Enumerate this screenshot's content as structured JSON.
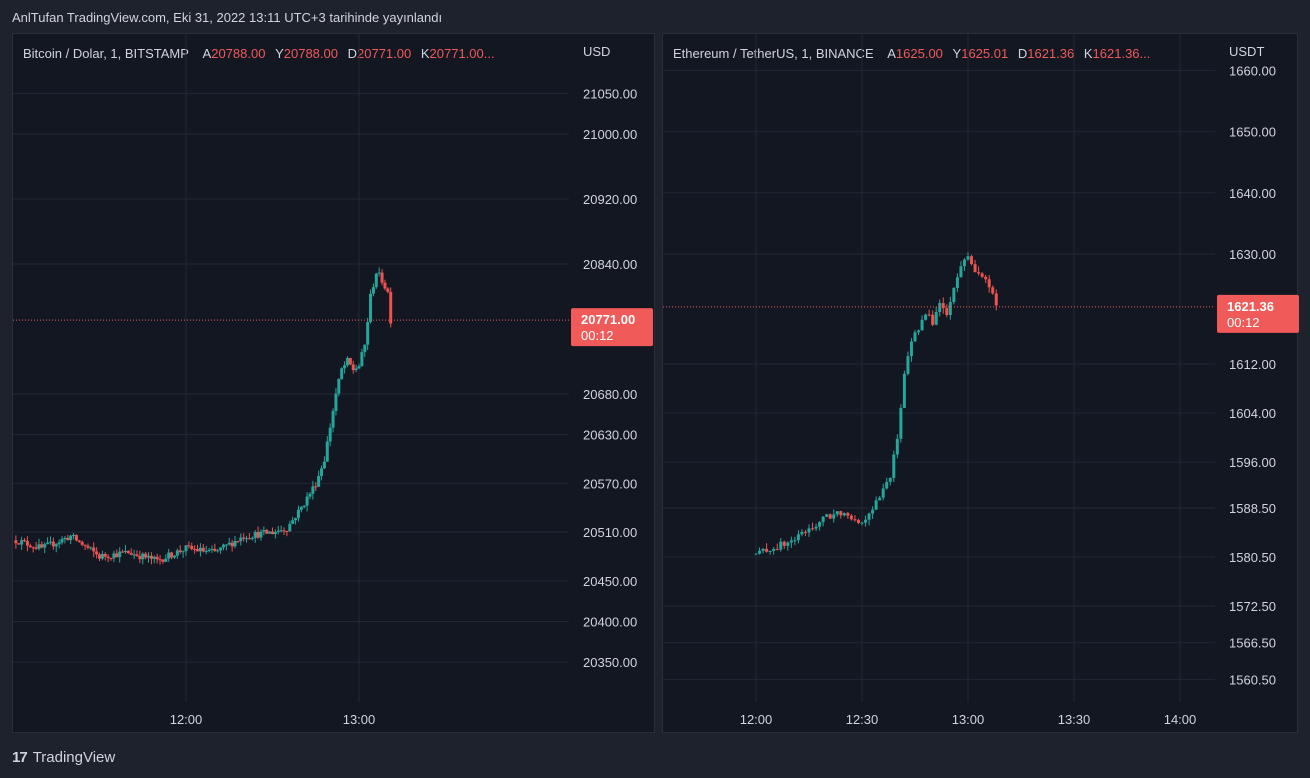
{
  "header": {
    "title": "AnlTufan TradingView.com, Eki 31, 2022 13:11 UTC+3 tarihinde yayınlandı"
  },
  "footer": {
    "brand": "TradingView",
    "logo_icon": "tradingview-logo-icon"
  },
  "colors": {
    "up": "#26a69a",
    "down": "#ef5350",
    "grid": "#232733",
    "bg": "#131722",
    "badge": "#f05a58"
  },
  "chart_data": [
    {
      "type": "candlestick",
      "symbol": "Bitcoin / Dolar, 1, BITSTAMP",
      "ohlc": [
        {
          "label": "A",
          "value": "20788.00"
        },
        {
          "label": "Y",
          "value": "20788.00"
        },
        {
          "label": "D",
          "value": "20771.00"
        },
        {
          "label": "K",
          "value": "20771.00..."
        }
      ],
      "currency": "USD",
      "yticks": [
        21050,
        21000,
        20920,
        20840,
        20680,
        20630,
        20570,
        20510,
        20450,
        20400,
        20350
      ],
      "ytick_labels": [
        "21050.00",
        "21000.00",
        "20920.00",
        "20840.00",
        "20680.00",
        "20630.00",
        "20570.00",
        "20510.00",
        "20450.00",
        "20400.00",
        "20350.00"
      ],
      "xticks": [
        {
          "label": "12:00",
          "minute": 720
        },
        {
          "label": "13:00",
          "minute": 780
        }
      ],
      "last_price": 20771.0,
      "last_price_label": "20771.00",
      "countdown": "00:12",
      "path": [
        [
          661,
          20500
        ],
        [
          670,
          20490
        ],
        [
          680,
          20505
        ],
        [
          690,
          20480
        ],
        [
          700,
          20485
        ],
        [
          710,
          20475
        ],
        [
          720,
          20490
        ],
        [
          730,
          20485
        ],
        [
          740,
          20505
        ],
        [
          750,
          20510
        ],
        [
          755,
          20515
        ],
        [
          760,
          20540
        ],
        [
          765,
          20570
        ],
        [
          768,
          20600
        ],
        [
          770,
          20640
        ],
        [
          772,
          20680
        ],
        [
          774,
          20710
        ],
        [
          776,
          20720
        ],
        [
          778,
          20710
        ],
        [
          780,
          20715
        ],
        [
          782,
          20740
        ],
        [
          784,
          20800
        ],
        [
          786,
          20830
        ],
        [
          788,
          20820
        ],
        [
          790,
          20805
        ],
        [
          791,
          20771
        ]
      ]
    },
    {
      "type": "candlestick",
      "symbol": "Ethereum / TetherUS, 1, BINANCE",
      "ohlc": [
        {
          "label": "A",
          "value": "1625.00"
        },
        {
          "label": "Y",
          "value": "1625.01"
        },
        {
          "label": "D",
          "value": "1621.36"
        },
        {
          "label": "K",
          "value": "1621.36..."
        }
      ],
      "currency": "USDT",
      "yticks": [
        1660,
        1650,
        1640,
        1630,
        1612,
        1604,
        1596,
        1588.5,
        1580.5,
        1572.5,
        1566.5,
        1560.5
      ],
      "ytick_labels": [
        "1660.00",
        "1650.00",
        "1640.00",
        "1630.00",
        "1612.00",
        "1604.00",
        "1596.00",
        "1588.50",
        "1580.50",
        "1572.50",
        "1566.50",
        "1560.50"
      ],
      "xticks": [
        {
          "label": "12:00",
          "minute": 720
        },
        {
          "label": "12:30",
          "minute": 750
        },
        {
          "label": "13:00",
          "minute": 780
        },
        {
          "label": "13:30",
          "minute": 810
        },
        {
          "label": "14:00",
          "minute": 840
        }
      ],
      "last_price": 1621.36,
      "last_price_label": "1621.36",
      "countdown": "00:12",
      "path": [
        [
          720,
          1581
        ],
        [
          725,
          1582
        ],
        [
          730,
          1583
        ],
        [
          735,
          1585
        ],
        [
          740,
          1587
        ],
        [
          745,
          1588
        ],
        [
          750,
          1586
        ],
        [
          752,
          1588
        ],
        [
          755,
          1590
        ],
        [
          758,
          1594
        ],
        [
          760,
          1600
        ],
        [
          762,
          1610
        ],
        [
          764,
          1616
        ],
        [
          766,
          1618
        ],
        [
          768,
          1620
        ],
        [
          770,
          1619
        ],
        [
          772,
          1622
        ],
        [
          774,
          1620
        ],
        [
          776,
          1624
        ],
        [
          778,
          1628
        ],
        [
          780,
          1630
        ],
        [
          782,
          1627
        ],
        [
          784,
          1626
        ],
        [
          786,
          1625
        ],
        [
          788,
          1621.36
        ]
      ]
    }
  ]
}
